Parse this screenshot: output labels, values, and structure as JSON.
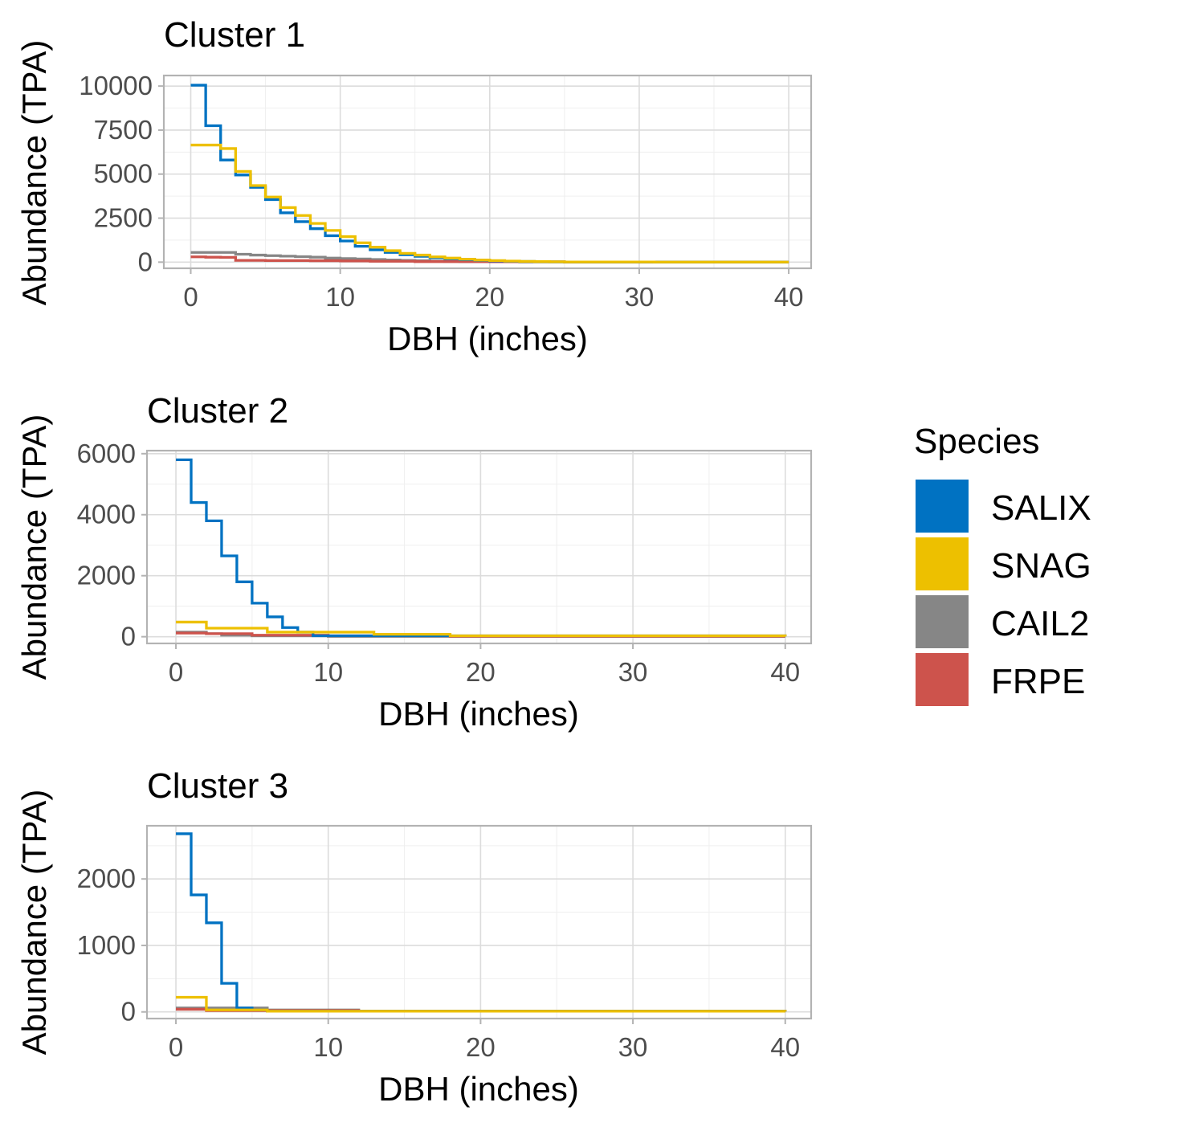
{
  "colors": {
    "SALIX": "#0072c2",
    "SNAG": "#edc000",
    "CAIL2": "#868686",
    "FRPE": "#cd534c"
  },
  "legend": {
    "title": "Species",
    "items": [
      "SALIX",
      "SNAG",
      "CAIL2",
      "FRPE"
    ]
  },
  "chart_data": [
    {
      "type": "line",
      "subtype": "step",
      "title": "Cluster 1",
      "xlabel": "DBH (inches)",
      "ylabel": "Abundance (TPA)",
      "xlim": [
        -1.8,
        41.5
      ],
      "ylim": [
        -350,
        10600
      ],
      "xticks": [
        0,
        10,
        20,
        30,
        40
      ],
      "xtick_labels": [
        "0",
        "10",
        "20",
        "30",
        "40"
      ],
      "yticks": [
        0,
        2500,
        5000,
        7500,
        10000
      ],
      "ytick_labels": [
        "0",
        "2500",
        "5000",
        "7500",
        "10000"
      ],
      "grid": true,
      "series": [
        {
          "name": "SALIX",
          "x": [
            0,
            1,
            2,
            3,
            4,
            5,
            6,
            7,
            8,
            9,
            10,
            11,
            12,
            13,
            14,
            15,
            16,
            17,
            18,
            19,
            20,
            21,
            22,
            23,
            24,
            25,
            31,
            40
          ],
          "values": [
            10050,
            7750,
            5800,
            4950,
            4250,
            3550,
            2800,
            2300,
            1900,
            1500,
            1200,
            900,
            700,
            550,
            420,
            330,
            250,
            190,
            140,
            100,
            70,
            50,
            35,
            25,
            15,
            10,
            5,
            5
          ]
        },
        {
          "name": "SNAG",
          "x": [
            0,
            1,
            2,
            3,
            4,
            5,
            6,
            7,
            8,
            9,
            10,
            11,
            12,
            13,
            14,
            15,
            16,
            17,
            18,
            19,
            20,
            21,
            22,
            23,
            24,
            25,
            31,
            40
          ],
          "values": [
            6650,
            6650,
            6450,
            5150,
            4350,
            3700,
            3100,
            2650,
            2200,
            1800,
            1450,
            1100,
            850,
            650,
            500,
            400,
            300,
            230,
            170,
            120,
            90,
            60,
            40,
            30,
            20,
            10,
            5,
            5
          ]
        },
        {
          "name": "CAIL2",
          "x": [
            0,
            1,
            2,
            3,
            4,
            5,
            6,
            7,
            8,
            9,
            10,
            11,
            12,
            13,
            14,
            15,
            16,
            17,
            18,
            20,
            22,
            25,
            40
          ],
          "values": [
            550,
            550,
            550,
            450,
            400,
            370,
            340,
            310,
            280,
            230,
            200,
            180,
            150,
            120,
            100,
            80,
            60,
            40,
            30,
            20,
            10,
            5,
            5
          ]
        },
        {
          "name": "FRPE",
          "x": [
            0,
            1,
            2,
            3,
            5,
            8,
            10,
            12,
            15,
            20,
            25,
            40
          ],
          "values": [
            300,
            280,
            270,
            100,
            90,
            80,
            70,
            50,
            30,
            20,
            10,
            10
          ]
        }
      ]
    },
    {
      "type": "line",
      "subtype": "step",
      "title": "Cluster 2",
      "xlabel": "DBH (inches)",
      "ylabel": "Abundance (TPA)",
      "xlim": [
        -1.9,
        41.7
      ],
      "ylim": [
        -220,
        6100
      ],
      "xticks": [
        0,
        10,
        20,
        30,
        40
      ],
      "xtick_labels": [
        "0",
        "10",
        "20",
        "30",
        "40"
      ],
      "yticks": [
        0,
        2000,
        4000,
        6000
      ],
      "ytick_labels": [
        "0",
        "2000",
        "4000",
        "6000"
      ],
      "grid": true,
      "series": [
        {
          "name": "SALIX",
          "x": [
            0,
            1,
            2,
            3,
            4,
            5,
            6,
            7,
            8,
            9,
            40
          ],
          "values": [
            5800,
            4400,
            3800,
            2650,
            1800,
            1100,
            650,
            300,
            150,
            30,
            10
          ]
        },
        {
          "name": "SNAG",
          "x": [
            0,
            2,
            6,
            13,
            18,
            40
          ],
          "values": [
            480,
            280,
            150,
            80,
            30,
            10
          ]
        },
        {
          "name": "CAIL2",
          "x": [
            0,
            2,
            3,
            5,
            10,
            40
          ],
          "values": [
            150,
            100,
            50,
            30,
            10,
            10
          ]
        },
        {
          "name": "FRPE",
          "x": [
            0,
            2,
            5,
            10,
            18,
            40
          ],
          "values": [
            120,
            100,
            50,
            30,
            10,
            10
          ]
        }
      ]
    },
    {
      "type": "line",
      "subtype": "step",
      "title": "Cluster 3",
      "xlabel": "DBH (inches)",
      "ylabel": "Abundance (TPA)",
      "xlim": [
        -1.9,
        41.7
      ],
      "ylim": [
        -100,
        2800
      ],
      "xticks": [
        0,
        10,
        20,
        30,
        40
      ],
      "xtick_labels": [
        "0",
        "10",
        "20",
        "30",
        "40"
      ],
      "yticks": [
        0,
        1000,
        2000
      ],
      "ytick_labels": [
        "0",
        "1000",
        "2000"
      ],
      "grid": true,
      "series": [
        {
          "name": "SALIX",
          "x": [
            0,
            1,
            2,
            3,
            4,
            5,
            6,
            40
          ],
          "values": [
            2680,
            1760,
            1340,
            430,
            60,
            30,
            10,
            5
          ]
        },
        {
          "name": "SNAG",
          "x": [
            0,
            2,
            6,
            40
          ],
          "values": [
            220,
            30,
            10,
            5
          ]
        },
        {
          "name": "CAIL2",
          "x": [
            0,
            4,
            6,
            12,
            40
          ],
          "values": [
            60,
            60,
            30,
            10,
            5
          ]
        },
        {
          "name": "FRPE",
          "x": [
            0,
            2,
            6,
            12,
            40
          ],
          "values": [
            40,
            20,
            20,
            10,
            5
          ]
        }
      ]
    }
  ]
}
